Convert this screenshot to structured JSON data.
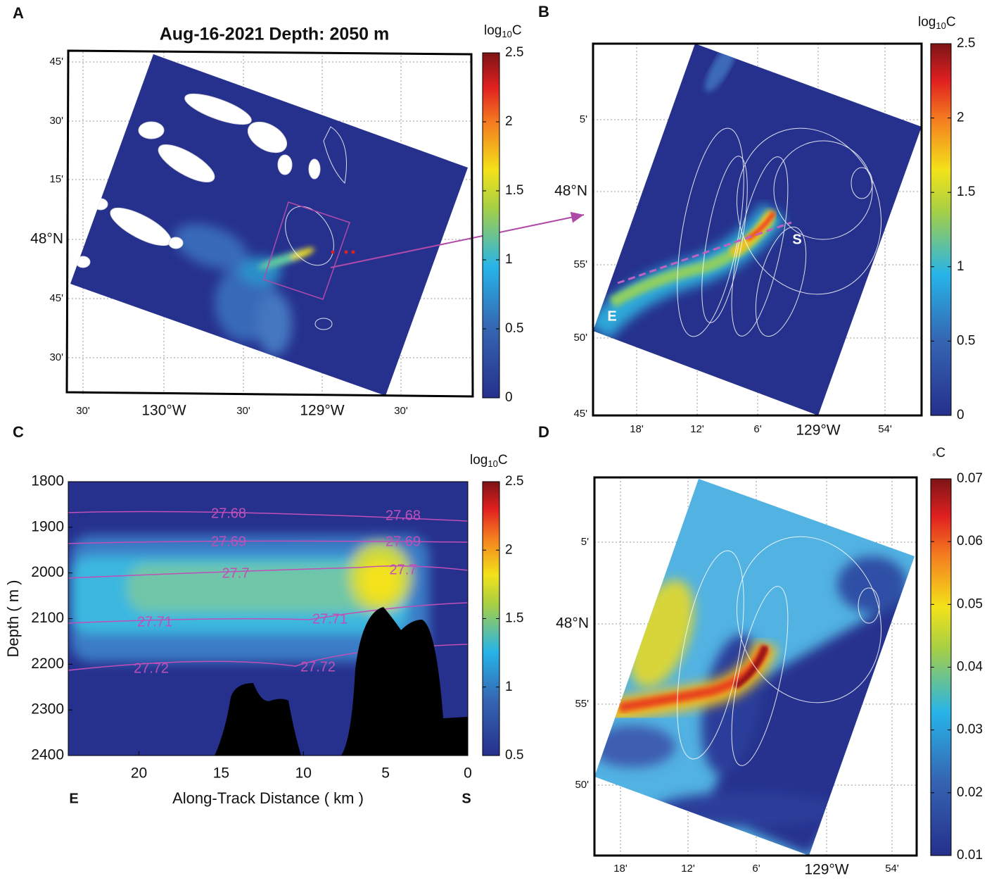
{
  "panels": [
    {
      "label": "A",
      "title": "Aug-16-2021 Depth: 2050 m",
      "y_labels": [
        "45'",
        "30'",
        "15'",
        "48°N",
        "45'",
        "30'"
      ],
      "x_labels": [
        "30'",
        "130°W",
        "30'",
        "129°W",
        "30'"
      ],
      "colorbar": {
        "label": {
          "base": "log",
          "sub": "10",
          "unit": "C"
        },
        "lim": [
          0,
          2.5
        ],
        "ticks": [
          0,
          0.5,
          1,
          1.5,
          2,
          2.5
        ]
      }
    },
    {
      "label": "B",
      "y_labels": [
        "5'",
        "48°N",
        "55'",
        "50'",
        "45'"
      ],
      "x_labels": [
        "18'",
        "12'",
        "6'",
        "129°W",
        "54'"
      ],
      "annotations": [
        "E",
        "S"
      ],
      "colorbar": {
        "label": {
          "base": "log",
          "sub": "10",
          "unit": "C"
        },
        "lim": [
          0,
          2.5
        ],
        "ticks": [
          0,
          0.5,
          1,
          1.5,
          2,
          2.5
        ]
      }
    },
    {
      "label": "C",
      "ylabel": "Depth ( m )",
      "xlabel": "Along-Track Distance ( km )",
      "ylim": [
        1800,
        2400
      ],
      "yticks": [
        1800,
        1900,
        2000,
        2100,
        2200,
        2300,
        2400
      ],
      "xlim": [
        24.3,
        0
      ],
      "xticks": [
        20,
        15,
        10,
        5,
        0
      ],
      "contour_labels": [
        "27.68",
        "27.68",
        "27.69",
        "27.69",
        "27.7",
        "27.7",
        "27.71",
        "27.71",
        "27.72",
        "27.72"
      ],
      "end_labels": [
        "E",
        "S"
      ],
      "colorbar": {
        "label": {
          "base": "log",
          "sub": "10",
          "unit": "C"
        },
        "lim": [
          0.5,
          2.5
        ],
        "ticks": [
          0.5,
          1,
          1.5,
          2,
          2.5
        ]
      }
    },
    {
      "label": "D",
      "y_labels": [
        "5'",
        "48°N",
        "55'",
        "50'"
      ],
      "x_labels": [
        "18'",
        "12'",
        "6'",
        "129°W",
        "54'"
      ],
      "colorbar": {
        "label": {
          "base": "°",
          "sub": "",
          "unit": "C"
        },
        "lim": [
          0.01,
          0.07
        ],
        "ticks": [
          0.01,
          0.02,
          0.03,
          0.04,
          0.05,
          0.06,
          0.07
        ]
      }
    }
  ]
}
